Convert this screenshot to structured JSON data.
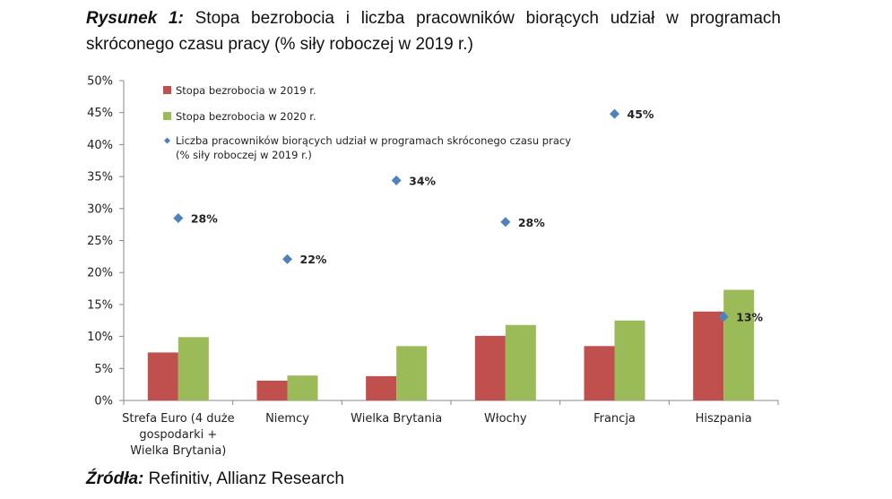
{
  "caption": {
    "label": "Rysunek 1:",
    "text": "Stopa bezrobocia i liczba pracowników biorących udział w programach skróconego czasu pracy (% siły roboczej w 2019 r.)"
  },
  "source": {
    "label": "Źródła:",
    "text": "Refinitiv, Allianz Research"
  },
  "chart_data": {
    "type": "bar",
    "title": "",
    "xlabel": "",
    "ylabel": "",
    "ylim": [
      0,
      50
    ],
    "yticks": [
      "0%",
      "5%",
      "10%",
      "15%",
      "20%",
      "25%",
      "30%",
      "35%",
      "40%",
      "45%",
      "50%"
    ],
    "categories": [
      [
        "Strefa Euro (4 duże",
        "gospodarki +",
        "Wielka Brytania)"
      ],
      [
        "Niemcy"
      ],
      [
        "Wielka Brytania"
      ],
      [
        "Włochy"
      ],
      [
        "Francja"
      ],
      [
        "Hiszpania"
      ]
    ],
    "series": [
      {
        "name": "Stopa bezrobocia w 2019 r.",
        "type": "bar",
        "color": "#c0504d",
        "values": [
          7.5,
          3.1,
          3.8,
          10.1,
          8.5,
          13.9
        ]
      },
      {
        "name": "Stopa bezrobocia w 2020 r.",
        "type": "bar",
        "color": "#9bbb59",
        "values": [
          9.9,
          3.9,
          8.5,
          11.8,
          12.5,
          17.3
        ]
      },
      {
        "name": [
          "Liczba pracowników biorących udział w programach skróconego czasu pracy",
          "(% siły roboczej w 2019 r.)"
        ],
        "type": "scatter",
        "color": "#4f81bd",
        "values": [
          28.5,
          22.1,
          34.4,
          27.9,
          44.8,
          13.1
        ],
        "labels": [
          "28%",
          "22%",
          "34%",
          "28%",
          "45%",
          "13%"
        ]
      }
    ],
    "legend_position": "top-left",
    "grid": false
  }
}
